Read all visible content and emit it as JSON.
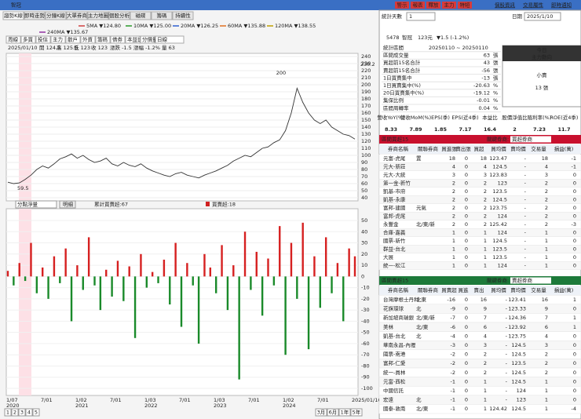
{
  "title_bar": {
    "title": "智冠"
  },
  "toolbar": {
    "buttons": [
      "警示",
      "報表",
      "釋放",
      "主力",
      "特短"
    ],
    "links": [
      "個股資訊",
      "交易屬性",
      "即時通知"
    ],
    "date_label": "日期",
    "date": "2025/1/10",
    "stat_days_label": "統計天數",
    "stat_days": 1
  },
  "left_tabs": [
    "趨勢K線",
    "即時走勢",
    "分鐘K線",
    "大單券商",
    "主力地圖",
    "個股分析",
    "磁碟",
    "籌碼",
    "持續性"
  ],
  "ma_legend": [
    {
      "label": "5MA ▼124.80",
      "color": "#d04040"
    },
    {
      "label": "10MA ▼125.00",
      "color": "#2a9a2a"
    },
    {
      "label": "20MA ▼126.25",
      "color": "#3060d0"
    },
    {
      "label": "60MA ▼135.88",
      "color": "#e07020"
    },
    {
      "label": "120MA ▼138.55",
      "color": "#c0a000"
    },
    {
      "label": "240MA ▼135.67",
      "color": "#9030a0"
    }
  ],
  "sub_tabs": [
    "周線",
    "多買",
    "投信",
    "主力",
    "散戶",
    "外資",
    "籌碼",
    "借券",
    "本益比",
    "分價量",
    "日線"
  ],
  "price_info": {
    "date": "2025/01/10",
    "items": [
      "開 124.5",
      "高 125.5",
      "低 123",
      "收 123"
    ],
    "change": "漲跌 -1.5",
    "pct": "漲幅 -1.2%",
    "volume": "量 63"
  },
  "price_chart": {
    "ylim": [
      40,
      240
    ],
    "yticks": [
      40,
      50,
      60,
      70,
      80,
      90,
      100,
      110,
      120,
      130,
      140,
      150,
      160,
      170,
      180,
      190,
      200,
      210,
      220,
      230,
      240
    ],
    "marker_label": "230.2",
    "high_label": "200",
    "low_label": "59.5",
    "closes": [
      62,
      60,
      61,
      66,
      72,
      80,
      85,
      82,
      88,
      95,
      98,
      102,
      96,
      100,
      94,
      90,
      92,
      96,
      88,
      85,
      90,
      86,
      84,
      88,
      82,
      78,
      75,
      72,
      70,
      74,
      76,
      72,
      70,
      68,
      72,
      75,
      78,
      82,
      86,
      92,
      96,
      100,
      98,
      104,
      110,
      112,
      118,
      122,
      135,
      160,
      195,
      175,
      160,
      150,
      145,
      150,
      140,
      135,
      130,
      128,
      123
    ],
    "xticks": [
      {
        "date": "1/07",
        "year": "2020"
      },
      {
        "date": "7/01",
        "year": null
      },
      {
        "date": "1/02",
        "year": "2021"
      },
      {
        "date": "7/01",
        "year": null
      },
      {
        "date": "1/03",
        "year": "2022"
      },
      {
        "date": "7/01",
        "year": null
      },
      {
        "date": "1/03",
        "year": "2023"
      },
      {
        "date": "7/01",
        "year": null
      },
      {
        "date": "1/02",
        "year": "2024"
      },
      {
        "date": "7/01",
        "year": null
      },
      {
        "date": "2025/01/10",
        "year": null
      }
    ]
  },
  "lower_toolbar": {
    "select": "分點淨量",
    "button": "明細",
    "legend": [
      "累計買賣超:67",
      "買賣超:18"
    ]
  },
  "broker_chart": {
    "ylim": [
      -100,
      50
    ],
    "yticks": [
      -100,
      -90,
      -80,
      -70,
      -60,
      -50,
      -40,
      -30,
      -20,
      -10,
      0,
      10,
      20,
      30,
      40,
      50
    ],
    "values": [
      5,
      -8,
      12,
      -4,
      30,
      -15,
      8,
      -20,
      18,
      -6,
      25,
      -40,
      10,
      -12,
      35,
      -8,
      -30,
      6,
      -18,
      14,
      -22,
      9,
      -55,
      20,
      -10,
      4,
      -6,
      15,
      -25,
      30,
      -45,
      12,
      -8,
      -60,
      20,
      8,
      -15,
      28,
      -30,
      10,
      -92,
      40,
      -12,
      22,
      -35,
      16,
      -8,
      45,
      -70,
      30,
      -20,
      48,
      -65,
      18,
      -28,
      35,
      -15,
      12,
      -40,
      25,
      18
    ]
  },
  "bottom": {
    "pages": [
      "1",
      "2",
      "3",
      "4",
      "5"
    ],
    "ranges": [
      "3月",
      "6月",
      "1年",
      "5年"
    ]
  },
  "stock_header": {
    "code": "5478",
    "name": "智冠",
    "price": "123元",
    "change": "▼1.5 (-1.2%)"
  },
  "stats": [
    [
      "統計區間",
      "20250110 ~ 20250110",
      ""
    ],
    [
      "區間成交量",
      "63",
      "張"
    ],
    [
      "買超前15名合計",
      "43",
      "張"
    ],
    [
      "賣超前15名合計",
      "-56",
      "張"
    ],
    [
      "1日買賣集中",
      "-13",
      "張"
    ],
    [
      "1日買賣集中(%)",
      "-20.63",
      "%"
    ],
    [
      "20日買賣集中(%)",
      "-19.12",
      "%"
    ],
    [
      "集保比例",
      "-0.01",
      "%"
    ],
    [
      "區間周轉率",
      "0.04",
      "%"
    ]
  ],
  "today": {
    "title": "今日",
    "subtitle": "主力動向",
    "signal": "小賣",
    "amount": "13 張"
  },
  "fundamentals": {
    "headers": [
      "營收YoY(%)",
      "營收MoM(%)",
      "EPS(季)",
      "EPS(近4季)",
      "本益比",
      "股價淨值比",
      "殖利率(%)",
      "ROE(近4季)"
    ],
    "values": [
      8.33,
      7.89,
      1.85,
      7.17,
      16.4,
      2,
      7.23,
      11.7
    ]
  },
  "buy_table": {
    "title": "區間買超15",
    "select_label": "關鍵券商:",
    "select": "買超券商",
    "columns": [
      "券商名稱",
      "關聯券商",
      "買進張",
      "賣出張",
      "買超",
      "買均價",
      "賣均價",
      "交易量",
      "損益(萬)"
    ],
    "rows": [
      [
        "元富-虎尾",
        "置",
        18,
        0,
        18,
        "123.47",
        "-",
        18,
        -1
      ],
      [
        "元大-新莊",
        "",
        4,
        0,
        4,
        "124.5",
        "-",
        4,
        -1
      ],
      [
        "元大-大統",
        "",
        3,
        0,
        3,
        "123.83",
        "-",
        3,
        0
      ],
      [
        "第一金-新竹",
        "",
        2,
        0,
        2,
        "123",
        "-",
        2,
        0
      ],
      [
        "凱基-市府",
        "",
        2,
        0,
        2,
        "123.5",
        "-",
        2,
        0
      ],
      [
        "凱基-永康",
        "",
        2,
        0,
        2,
        "124.5",
        "-",
        2,
        0
      ],
      [
        "富邦-建國",
        "元氣",
        2,
        0,
        2,
        "123.75",
        "-",
        2,
        0
      ],
      [
        "富邦-虎尾",
        "",
        2,
        0,
        2,
        "124",
        "-",
        2,
        0
      ],
      [
        "永豐金",
        "北/東/新",
        2,
        0,
        2,
        "125.42",
        "-",
        2,
        -3
      ],
      [
        "合庫-嘉義",
        "",
        1,
        0,
        1,
        "124",
        "-",
        1,
        0
      ],
      [
        "國票-新竹",
        "",
        1,
        0,
        1,
        "124.5",
        "-",
        1,
        0
      ],
      [
        "群益-台北",
        "",
        1,
        0,
        1,
        "123.5",
        "-",
        1,
        0
      ],
      [
        "大展",
        "",
        1,
        0,
        1,
        "123.5",
        "-",
        1,
        0
      ],
      [
        "統一-松江",
        "",
        1,
        0,
        1,
        "124",
        "-",
        1,
        0
      ]
    ]
  },
  "sell_table": {
    "title": "區間賣超15",
    "select_label": "關鍵券商:",
    "select": "賣超券商",
    "columns": [
      "券商名稱",
      "關聯券商",
      "買賣超",
      "買進",
      "賣出",
      "買均價",
      "賣均價",
      "交易量",
      "損益(萬)"
    ],
    "rows": [
      [
        "台灣摩根士丹利",
        "北東",
        -16,
        0,
        16,
        "-",
        "123.41",
        16,
        1
      ],
      [
        "花旗環球",
        "北",
        -9,
        0,
        9,
        "-",
        "123.33",
        9,
        0
      ],
      [
        "新加坡商瑞銀",
        "北/東/新",
        -7,
        0,
        7,
        "-",
        "124.36",
        7,
        1
      ],
      [
        "美林",
        "北/東",
        -6,
        0,
        6,
        "-",
        "123.92",
        6,
        1
      ],
      [
        "凱基-台北",
        "北",
        -4,
        0,
        4,
        "-",
        "123.75",
        4,
        0
      ],
      [
        "華南永昌-內壢",
        "",
        -3,
        0,
        3,
        "-",
        "124.5",
        3,
        0
      ],
      [
        "國票-南港",
        "",
        -2,
        0,
        2,
        "-",
        "124.5",
        2,
        0
      ],
      [
        "富邦-仁愛",
        "",
        -2,
        0,
        2,
        "-",
        "123.5",
        2,
        0
      ],
      [
        "統一-員林",
        "",
        -2,
        0,
        2,
        "-",
        "124.5",
        2,
        0
      ],
      [
        "元富-西松",
        "",
        -1,
        0,
        1,
        "-",
        "124.5",
        1,
        0
      ],
      [
        "中國信託",
        "",
        -1,
        0,
        1,
        "-",
        "124",
        1,
        0
      ],
      [
        "宏遠",
        "北",
        -1,
        0,
        1,
        "-",
        "123",
        1,
        0
      ],
      [
        "國泰-敦南",
        "北/東",
        -1,
        0,
        1,
        "124.42",
        "124.5",
        1,
        -4
      ]
    ]
  }
}
